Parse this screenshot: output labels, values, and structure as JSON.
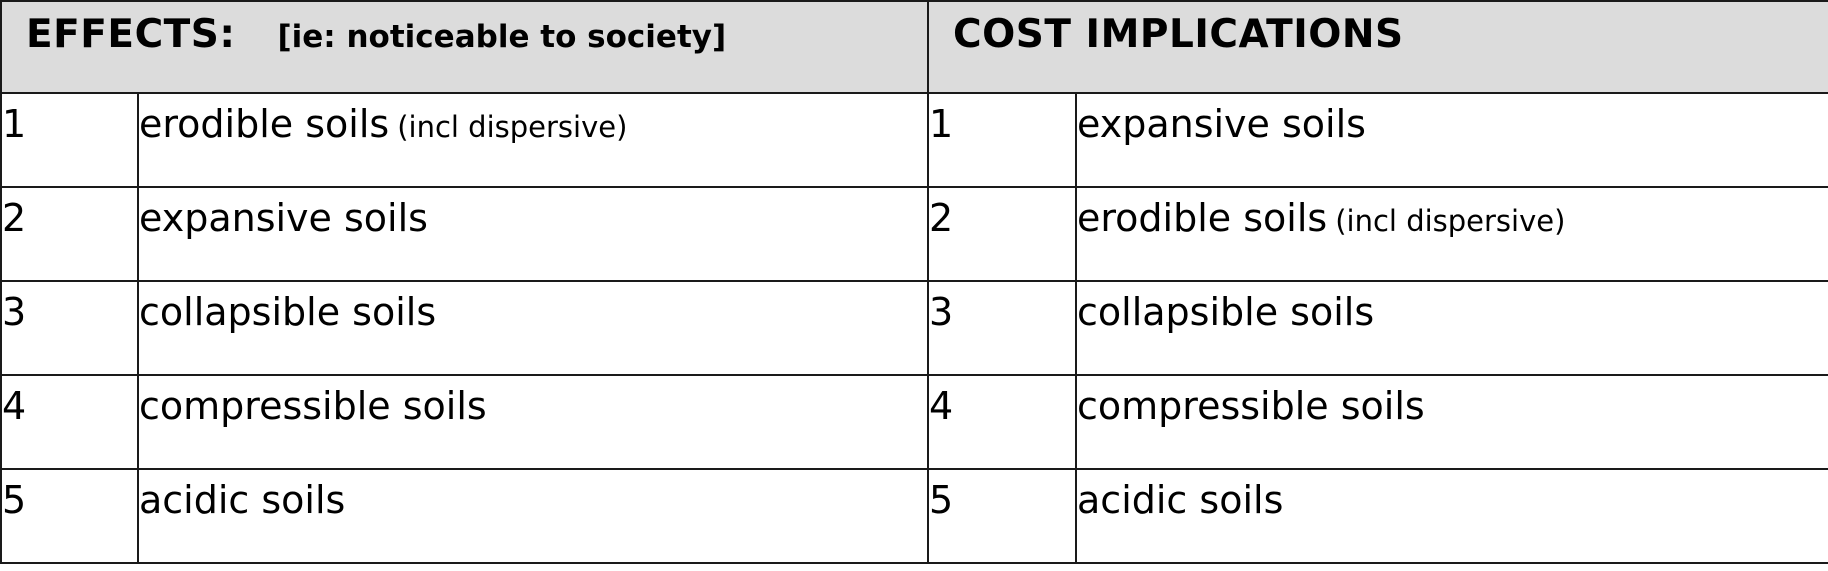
{
  "header": {
    "left_title": "EFFECTS:",
    "left_note": "[ie: noticeable to society]",
    "right_title": "COST IMPLICATIONS"
  },
  "effects": [
    {
      "rank": "1",
      "name": "erodible soils",
      "qualifier": "(incl dispersive)"
    },
    {
      "rank": "2",
      "name": "expansive soils",
      "qualifier": ""
    },
    {
      "rank": "3",
      "name": "collapsible soils",
      "qualifier": ""
    },
    {
      "rank": "4",
      "name": "compressible soils",
      "qualifier": ""
    },
    {
      "rank": "5",
      "name": "acidic soils",
      "qualifier": ""
    }
  ],
  "cost_implications": [
    {
      "rank": "1",
      "name": "expansive soils",
      "qualifier": ""
    },
    {
      "rank": "2",
      "name": "erodible soils",
      "qualifier": "(incl dispersive)"
    },
    {
      "rank": "3",
      "name": "collapsible soils",
      "qualifier": ""
    },
    {
      "rank": "4",
      "name": "compressible soils",
      "qualifier": ""
    },
    {
      "rank": "5",
      "name": "acidic soils",
      "qualifier": ""
    }
  ]
}
